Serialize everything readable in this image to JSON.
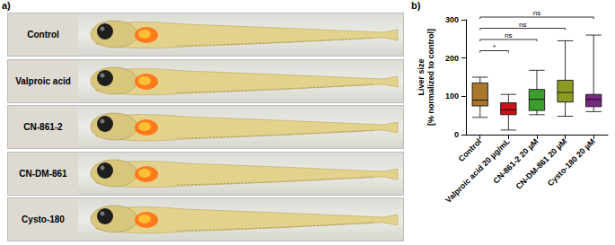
{
  "figure": {
    "panel_a": {
      "label": "a)",
      "rows": [
        "Control",
        "Valproic acid",
        "CN-861-2",
        "CN-DM-861",
        "Cysto-180"
      ]
    },
    "panel_b_label": "b)"
  },
  "chart_data": {
    "type": "boxplot",
    "y_label": [
      "Liver size",
      "[% normalized to control]"
    ],
    "categories": [
      "Control",
      "Valproic acid 20 µg/mL",
      "CN-861-2 20 µM",
      "CN-DM-861 20 µM",
      "Cysto-180 20 µM"
    ],
    "values": [
      [
        45,
        75,
        90,
        135,
        150
      ],
      [
        12,
        52,
        65,
        83,
        105
      ],
      [
        52,
        63,
        92,
        118,
        168
      ],
      [
        48,
        85,
        110,
        142,
        245
      ],
      [
        60,
        73,
        92,
        105,
        260
      ]
    ],
    "colors": [
      "#a8762c",
      "#c4141c",
      "#3b9e2c",
      "#8e9a26",
      "#74287e"
    ],
    "ylim": [
      0,
      300
    ],
    "yticks": [
      0,
      100,
      200,
      300
    ],
    "grid": false,
    "comparisons": [
      {
        "from": "Control",
        "to": "Valproic acid 20 µg/mL",
        "label": "*"
      },
      {
        "from": "Control",
        "to": "CN-861-2 20 µM",
        "label": "ns"
      },
      {
        "from": "Control",
        "to": "CN-DM-861 20 µM",
        "label": "ns"
      },
      {
        "from": "Control",
        "to": "Cysto-180 20 µM",
        "label": "ns"
      }
    ]
  }
}
